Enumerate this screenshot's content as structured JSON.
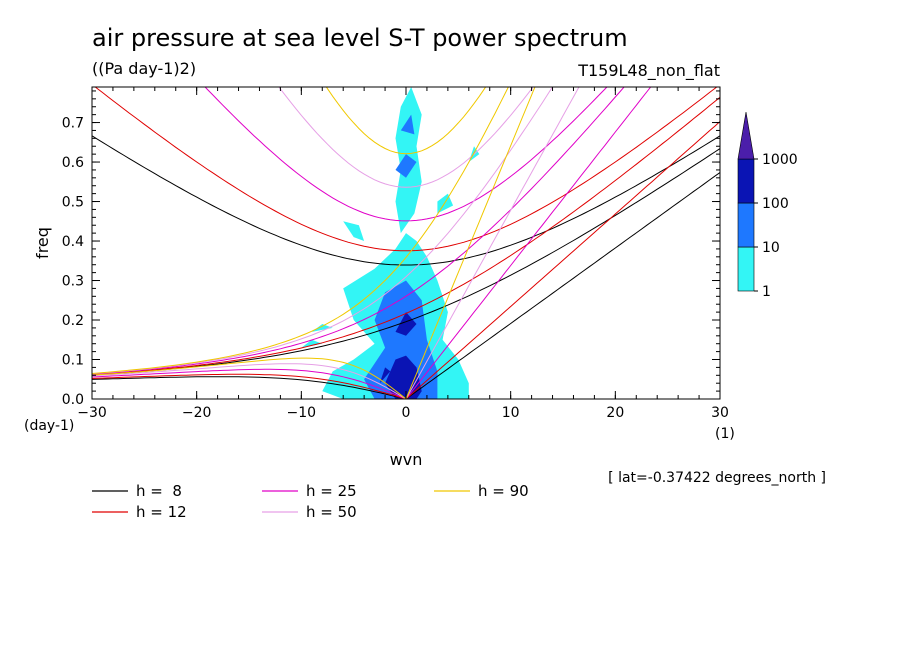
{
  "chart_data": {
    "type": "heatmap",
    "title": "air pressure at sea level S-T power spectrum",
    "units": "((Pa day-1)2)",
    "experiment": "T159L48_non_flat",
    "xlabel": "wvn",
    "ylabel": "freq",
    "x_unit": "(1)",
    "y_unit": "(day-1)",
    "footnote": "[ lat=-0.37422 degrees_north ]",
    "xlim": [
      -30,
      30
    ],
    "ylim": [
      0,
      0.79
    ],
    "xticks": [
      -30,
      -20,
      -10,
      0,
      10,
      20,
      30
    ],
    "yticks": [
      0.0,
      0.1,
      0.2,
      0.3,
      0.4,
      0.5,
      0.6,
      0.7
    ],
    "ytick_labels": [
      "0.0",
      "0.1",
      "0.2",
      "0.3",
      "0.4",
      "0.5",
      "0.6",
      "0.7"
    ],
    "colorbar": {
      "levels": [
        "1",
        "10",
        "100",
        "1000"
      ],
      "colors": [
        "#33f5f5",
        "#1e78ff",
        "#0a14b4",
        "#4b1eaa"
      ]
    },
    "power_regions": [
      {
        "level": 1,
        "points": [
          [
            -6,
            0
          ],
          [
            -8,
            0.02
          ],
          [
            -7,
            0.07
          ],
          [
            -5,
            0.1
          ],
          [
            -3,
            0.14
          ],
          [
            -5,
            0.2
          ],
          [
            -6,
            0.28
          ],
          [
            -3,
            0.33
          ],
          [
            -1,
            0.38
          ],
          [
            0,
            0.42
          ],
          [
            1,
            0.4
          ],
          [
            2,
            0.36
          ],
          [
            3,
            0.3
          ],
          [
            4,
            0.22
          ],
          [
            3.5,
            0.15
          ],
          [
            5,
            0.1
          ],
          [
            6,
            0.04
          ],
          [
            6,
            0
          ]
        ]
      },
      {
        "level": 1,
        "points": [
          [
            -0.5,
            0.42
          ],
          [
            -1,
            0.5
          ],
          [
            -0.5,
            0.58
          ],
          [
            -1,
            0.66
          ],
          [
            -0.5,
            0.74
          ],
          [
            0.5,
            0.79
          ],
          [
            1.5,
            0.72
          ],
          [
            1,
            0.64
          ],
          [
            1.5,
            0.55
          ],
          [
            0.8,
            0.47
          ]
        ]
      },
      {
        "level": 1,
        "points": [
          [
            -6,
            0.45
          ],
          [
            -5,
            0.41
          ],
          [
            -4,
            0.4
          ],
          [
            -4.5,
            0.44
          ]
        ]
      },
      {
        "level": 1,
        "points": [
          [
            -9,
            0.17
          ],
          [
            -7,
            0.18
          ],
          [
            -8,
            0.19
          ]
        ]
      },
      {
        "level": 1,
        "points": [
          [
            3,
            0.47
          ],
          [
            4.5,
            0.49
          ],
          [
            4,
            0.52
          ],
          [
            3,
            0.5
          ]
        ]
      },
      {
        "level": 1,
        "points": [
          [
            -10,
            0.13
          ],
          [
            -8,
            0.14
          ],
          [
            -9,
            0.15
          ]
        ]
      },
      {
        "level": 1,
        "points": [
          [
            6,
            0.6
          ],
          [
            7,
            0.62
          ],
          [
            6.5,
            0.64
          ]
        ]
      },
      {
        "level": 10,
        "points": [
          [
            -3,
            0
          ],
          [
            -4,
            0.05
          ],
          [
            -2,
            0.13
          ],
          [
            -3,
            0.2
          ],
          [
            -2,
            0.27
          ],
          [
            0,
            0.3
          ],
          [
            1.5,
            0.25
          ],
          [
            2,
            0.15
          ],
          [
            3,
            0.07
          ],
          [
            3,
            0
          ]
        ]
      },
      {
        "level": 10,
        "points": [
          [
            -1,
            0.58
          ],
          [
            0,
            0.62
          ],
          [
            1,
            0.6
          ],
          [
            0,
            0.56
          ]
        ]
      },
      {
        "level": 10,
        "points": [
          [
            -0.5,
            0.68
          ],
          [
            0.5,
            0.72
          ],
          [
            0.8,
            0.67
          ]
        ]
      },
      {
        "level": 100,
        "points": [
          [
            -1,
            0
          ],
          [
            -2,
            0.04
          ],
          [
            -1,
            0.1
          ],
          [
            0,
            0.11
          ],
          [
            1,
            0.08
          ],
          [
            1.5,
            0.02
          ],
          [
            1,
            0
          ]
        ]
      },
      {
        "level": 100,
        "points": [
          [
            -1,
            0.17
          ],
          [
            0,
            0.22
          ],
          [
            1,
            0.19
          ],
          [
            0,
            0.16
          ]
        ]
      },
      {
        "level": 100,
        "points": [
          [
            -2.5,
            0.04
          ],
          [
            -1.5,
            0.07
          ],
          [
            -2,
            0.08
          ]
        ]
      }
    ],
    "series": [
      {
        "name": "h =  8",
        "h": 8,
        "color": "#000000"
      },
      {
        "name": "h = 12",
        "h": 12,
        "color": "#e00000"
      },
      {
        "name": "h = 25",
        "h": 25,
        "color": "#e000c8"
      },
      {
        "name": "h = 50",
        "h": 50,
        "color": "#e6a0e6"
      },
      {
        "name": "h = 90",
        "h": 90,
        "color": "#f0c800"
      }
    ]
  }
}
